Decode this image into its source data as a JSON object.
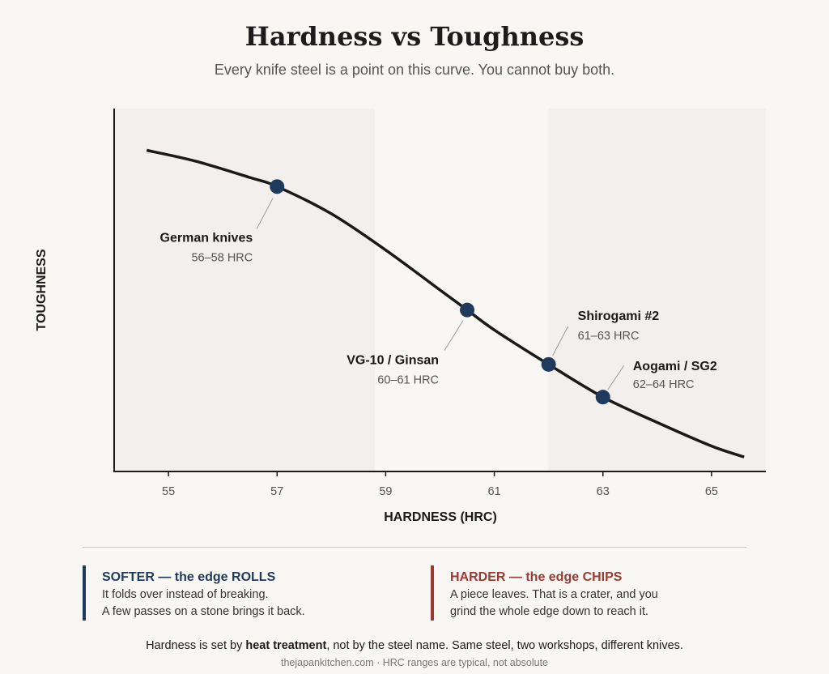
{
  "header": {
    "title": "Hardness vs Toughness",
    "subtitle": "Every knife steel is a point on this curve. You cannot buy both."
  },
  "chart_data": {
    "type": "line",
    "xlabel": "HARDNESS (HRC)",
    "ylabel": "TOUGHNESS",
    "xlim": [
      54,
      66
    ],
    "ylim": [
      0,
      1
    ],
    "x_ticks": [
      "55",
      "57",
      "59",
      "61",
      "63",
      "65"
    ],
    "grid": false,
    "shaded_regions": [
      {
        "x_start": 54,
        "x_end": 58.8,
        "color": "#f2efec"
      },
      {
        "x_start": 62,
        "x_end": 66,
        "color": "#f2efec"
      }
    ],
    "curve": {
      "x": [
        54.6,
        55.5,
        56.5,
        57,
        58,
        59,
        60,
        60.5,
        61,
        62,
        63,
        64,
        65,
        65.6
      ],
      "y": [
        0.885,
        0.855,
        0.81,
        0.785,
        0.71,
        0.61,
        0.5,
        0.445,
        0.39,
        0.295,
        0.205,
        0.135,
        0.07,
        0.04
      ]
    },
    "points": [
      {
        "name": "German knives",
        "range": "56–58 HRC",
        "x": 57,
        "y": 0.785
      },
      {
        "name": "VG-10 / Ginsan",
        "range": "60–61 HRC",
        "x": 60.5,
        "y": 0.445
      },
      {
        "name": "Shirogami #2",
        "range": "61–63 HRC",
        "x": 62,
        "y": 0.295
      },
      {
        "name": "Aogami / SG2",
        "range": "62–64 HRC",
        "x": 63,
        "y": 0.205
      }
    ],
    "colors": {
      "curve": "#1a1a1a",
      "point": "#1f3a5c",
      "shade": "#f2efec"
    }
  },
  "notes": {
    "left": {
      "heading": "SOFTER — the edge ROLLS",
      "line1": "It folds over instead of breaking.",
      "line2": "A few passes on a stone brings it back."
    },
    "right": {
      "heading": "HARDER — the edge CHIPS",
      "line1": "A piece leaves. That is a crater, and you",
      "line2": "grind the whole edge down to reach it."
    }
  },
  "footer": {
    "pre": "Hardness is set by ",
    "bold": "heat treatment",
    "post": ", not by the steel name. Same steel, two workshops, different knives.",
    "source": "thejapankitchen.com · HRC ranges are typical, not absolute"
  }
}
